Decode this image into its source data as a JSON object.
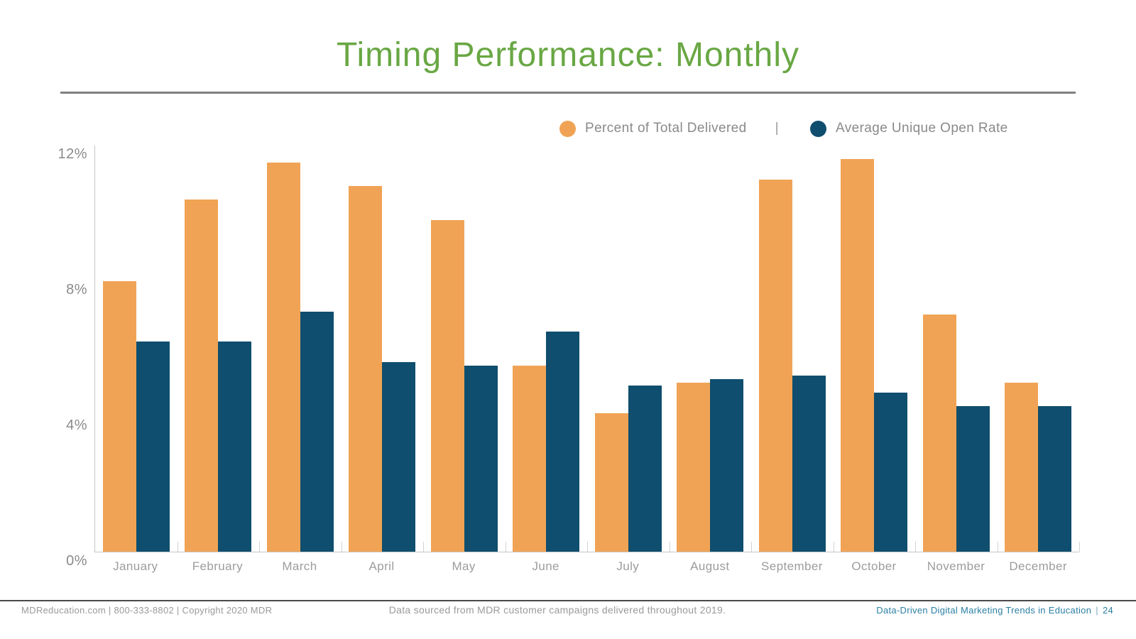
{
  "slide": {
    "title": "Timing Performance: Monthly",
    "footer": {
      "left": "MDReducation.com  |  800-333-8802  |  Copyright 2020 MDR",
      "center": "Data sourced from MDR customer campaigns delivered throughout 2019.",
      "right_title": "Data-Driven Digital Marketing Trends in Education",
      "right_separator": "|",
      "page_number": "24"
    }
  },
  "legend": {
    "series1": "Percent of Total Delivered",
    "separator": "|",
    "series2": "Average Unique Open Rate"
  },
  "colors": {
    "title_green": "#69A744",
    "orange": "#F0A355",
    "blue": "#0F4E6E",
    "axis_gray": "#C6C6C6",
    "label_gray": "#8A8A8A",
    "footer_teal": "#2B7FA3"
  },
  "chart_data": {
    "type": "bar",
    "title": "Timing Performance: Monthly",
    "categories": [
      "January",
      "February",
      "March",
      "April",
      "May",
      "June",
      "July",
      "August",
      "September",
      "October",
      "November",
      "December"
    ],
    "series": [
      {
        "name": "Percent of Total Delivered",
        "color_key": "orange",
        "values": [
          8.0,
          10.4,
          11.5,
          10.8,
          9.8,
          5.5,
          4.1,
          5.0,
          11.0,
          11.6,
          7.0,
          5.0
        ]
      },
      {
        "name": "Average Unique Open Rate",
        "color_key": "blue",
        "values": [
          6.2,
          6.2,
          7.1,
          5.6,
          5.5,
          6.5,
          4.9,
          5.1,
          5.2,
          4.7,
          4.3,
          4.3
        ]
      }
    ],
    "xlabel": "",
    "ylabel": "",
    "ylim": [
      0,
      12
    ],
    "yticks": [
      0,
      4,
      8,
      12
    ],
    "ytick_labels": [
      "0%",
      "4%",
      "8%",
      "12%"
    ],
    "grid": false,
    "legend_position": "top-right"
  }
}
